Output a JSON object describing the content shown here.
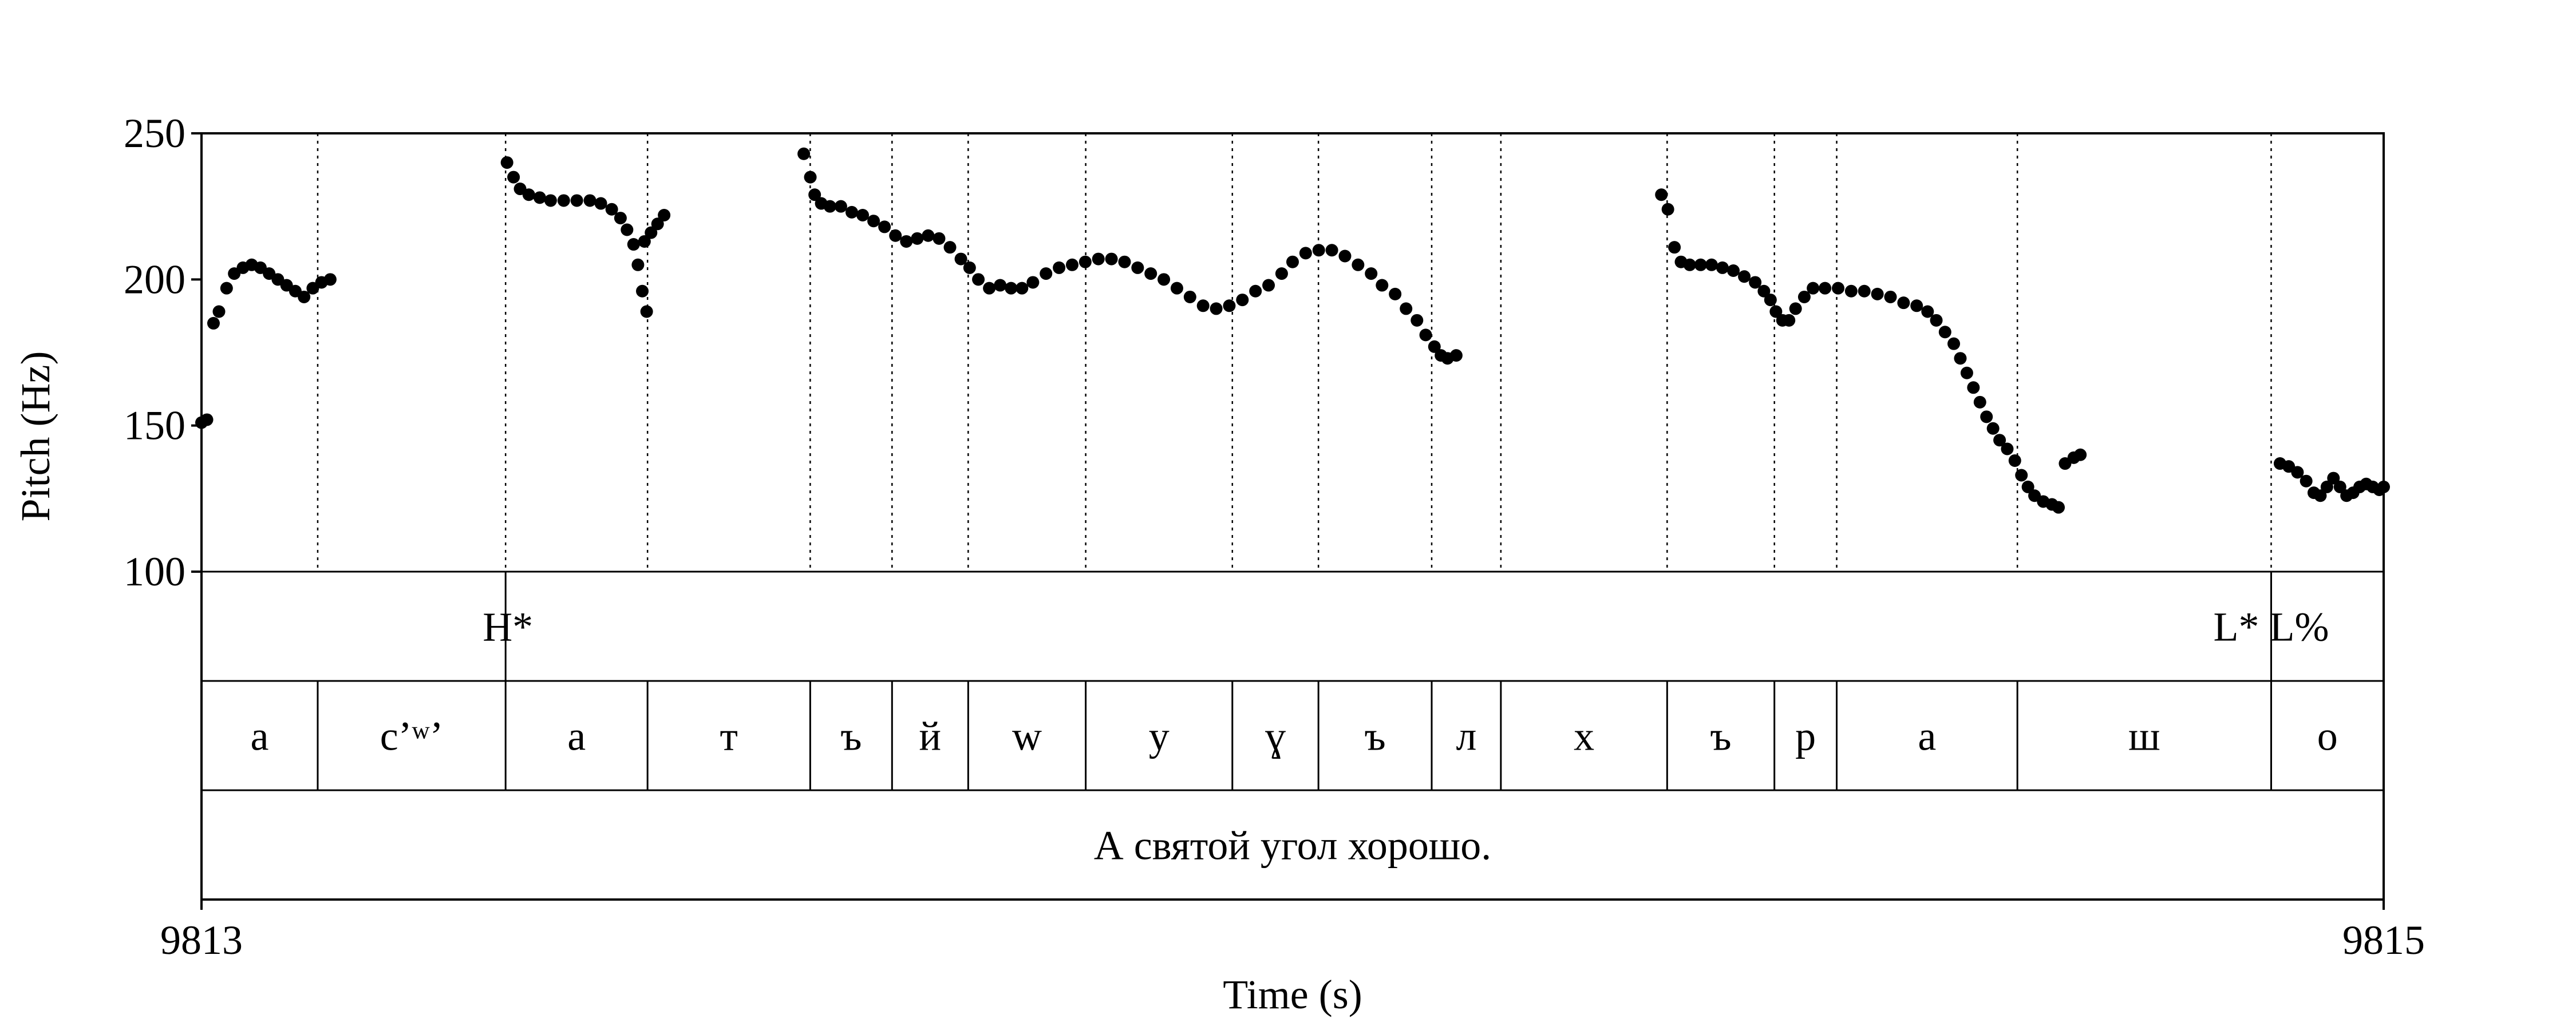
{
  "chart_data": {
    "type": "scatter",
    "title": "",
    "xlabel": "Time (s)",
    "ylabel": "Pitch (Hz)",
    "xlim": [
      9813,
      9815
    ],
    "ylim": [
      100,
      250
    ],
    "x_ticks": [
      "9813",
      "9815"
    ],
    "y_ticks": [
      {
        "value": 250,
        "label": "250"
      },
      {
        "value": 200,
        "label": "200"
      },
      {
        "value": 150,
        "label": "150"
      },
      {
        "value": 100,
        "label": "100"
      }
    ],
    "color": "#000000",
    "boundaries": [
      9813.1065,
      9813.2787,
      9813.4088,
      9813.5579,
      9813.6329,
      9813.7027,
      9813.8104,
      9813.9448,
      9814.0237,
      9814.1275,
      9814.1909,
      9814.3433,
      9814.4416,
      9814.4987,
      9814.6643,
      9814.8969
    ],
    "tones": [
      {
        "label": "H*",
        "time": 9813.2787,
        "align": "right"
      },
      {
        "label": "L* L%",
        "time": 9814.8969,
        "align": "center"
      }
    ],
    "segments": [
      {
        "label": "а",
        "start": 9813.0,
        "end": 9813.1065
      },
      {
        "label": "с’ʷ’",
        "start": 9813.1065,
        "end": 9813.2787
      },
      {
        "label": "а",
        "start": 9813.2787,
        "end": 9813.4088
      },
      {
        "label": "т",
        "start": 9813.4088,
        "end": 9813.5579
      },
      {
        "label": "ъ",
        "start": 9813.5579,
        "end": 9813.6329
      },
      {
        "label": "й",
        "start": 9813.6329,
        "end": 9813.7027
      },
      {
        "label": "w",
        "start": 9813.7027,
        "end": 9813.8104
      },
      {
        "label": "у",
        "start": 9813.8104,
        "end": 9813.9448
      },
      {
        "label": "ɣ",
        "start": 9813.9448,
        "end": 9814.0237
      },
      {
        "label": "ъ",
        "start": 9814.0237,
        "end": 9814.1275
      },
      {
        "label": "л",
        "start": 9814.1275,
        "end": 9814.1909
      },
      {
        "label": "х",
        "start": 9814.1909,
        "end": 9814.3433
      },
      {
        "label": "ъ",
        "start": 9814.3433,
        "end": 9814.4416
      },
      {
        "label": "р",
        "start": 9814.4416,
        "end": 9814.4987
      },
      {
        "label": "а",
        "start": 9814.4987,
        "end": 9814.6643
      },
      {
        "label": "ш",
        "start": 9814.6643,
        "end": 9814.8969
      },
      {
        "label": "о",
        "start": 9814.8969,
        "end": 9815.0
      }
    ],
    "sentence": "А святой угол хорошо.",
    "series": [
      {
        "points": [
          [
            9813.0,
            151
          ],
          [
            9813.005,
            152
          ],
          [
            9813.011,
            185
          ],
          [
            9813.016,
            189
          ],
          [
            9813.023,
            197
          ],
          [
            9813.03,
            202
          ],
          [
            9813.038,
            204
          ],
          [
            9813.046,
            205
          ],
          [
            9813.054,
            204
          ],
          [
            9813.062,
            202
          ],
          [
            9813.07,
            200
          ],
          [
            9813.078,
            198
          ],
          [
            9813.086,
            196
          ],
          [
            9813.094,
            194
          ],
          [
            9813.102,
            197
          ],
          [
            9813.11,
            199
          ],
          [
            9813.118,
            200
          ]
        ]
      },
      {
        "points": [
          [
            9813.28,
            240
          ],
          [
            9813.286,
            235
          ],
          [
            9813.292,
            231
          ],
          [
            9813.3,
            229
          ],
          [
            9813.31,
            228
          ],
          [
            9813.32,
            227
          ],
          [
            9813.332,
            227
          ],
          [
            9813.344,
            227
          ],
          [
            9813.356,
            227
          ],
          [
            9813.366,
            226
          ],
          [
            9813.376,
            224
          ],
          [
            9813.384,
            221
          ],
          [
            9813.39,
            217
          ],
          [
            9813.396,
            212
          ],
          [
            9813.4,
            205
          ],
          [
            9813.404,
            196
          ],
          [
            9813.408,
            189
          ],
          [
            9813.406,
            213
          ],
          [
            9813.412,
            216
          ],
          [
            9813.418,
            219
          ],
          [
            9813.424,
            222
          ]
        ]
      },
      {
        "points": [
          [
            9813.552,
            243
          ],
          [
            9813.558,
            235
          ],
          [
            9813.562,
            229
          ],
          [
            9813.568,
            226
          ],
          [
            9813.576,
            225
          ],
          [
            9813.586,
            225
          ],
          [
            9813.596,
            223
          ],
          [
            9813.606,
            222
          ],
          [
            9813.616,
            220
          ],
          [
            9813.626,
            218
          ],
          [
            9813.636,
            215
          ],
          [
            9813.646,
            213
          ],
          [
            9813.656,
            214
          ],
          [
            9813.666,
            215
          ],
          [
            9813.676,
            214
          ],
          [
            9813.686,
            211
          ],
          [
            9813.696,
            207
          ],
          [
            9813.704,
            204
          ],
          [
            9813.712,
            200
          ],
          [
            9813.722,
            197
          ],
          [
            9813.732,
            198
          ],
          [
            9813.742,
            197
          ],
          [
            9813.752,
            197
          ],
          [
            9813.762,
            199
          ],
          [
            9813.774,
            202
          ],
          [
            9813.786,
            204
          ],
          [
            9813.798,
            205
          ],
          [
            9813.81,
            206
          ],
          [
            9813.822,
            207
          ],
          [
            9813.834,
            207
          ],
          [
            9813.846,
            206
          ],
          [
            9813.858,
            204
          ],
          [
            9813.87,
            202
          ],
          [
            9813.882,
            200
          ],
          [
            9813.894,
            197
          ],
          [
            9813.906,
            194
          ],
          [
            9813.918,
            191
          ],
          [
            9813.93,
            190
          ],
          [
            9813.942,
            191
          ],
          [
            9813.954,
            193
          ],
          [
            9813.966,
            196
          ],
          [
            9813.978,
            198
          ],
          [
            9813.99,
            202
          ],
          [
            9814.0,
            206
          ],
          [
            9814.012,
            209
          ],
          [
            9814.024,
            210
          ],
          [
            9814.036,
            210
          ],
          [
            9814.048,
            208
          ],
          [
            9814.06,
            205
          ],
          [
            9814.072,
            202
          ],
          [
            9814.082,
            198
          ],
          [
            9814.094,
            195
          ],
          [
            9814.104,
            190
          ],
          [
            9814.114,
            186
          ],
          [
            9814.122,
            181
          ],
          [
            9814.13,
            177
          ],
          [
            9814.136,
            174
          ],
          [
            9814.142,
            173
          ],
          [
            9814.15,
            174
          ]
        ]
      },
      {
        "points": [
          [
            9814.338,
            229
          ],
          [
            9814.344,
            224
          ],
          [
            9814.35,
            211
          ],
          [
            9814.356,
            206
          ],
          [
            9814.364,
            205
          ],
          [
            9814.374,
            205
          ],
          [
            9814.384,
            205
          ],
          [
            9814.394,
            204
          ],
          [
            9814.404,
            203
          ],
          [
            9814.414,
            201
          ],
          [
            9814.424,
            199
          ],
          [
            9814.432,
            196
          ],
          [
            9814.438,
            193
          ],
          [
            9814.443,
            189
          ],
          [
            9814.449,
            186
          ],
          [
            9814.455,
            186
          ],
          [
            9814.461,
            190
          ],
          [
            9814.469,
            194
          ],
          [
            9814.477,
            197
          ],
          [
            9814.488,
            197
          ],
          [
            9814.5,
            197
          ],
          [
            9814.512,
            196
          ],
          [
            9814.524,
            196
          ],
          [
            9814.536,
            195
          ],
          [
            9814.548,
            194
          ],
          [
            9814.56,
            192
          ],
          [
            9814.572,
            191
          ],
          [
            9814.582,
            189
          ],
          [
            9814.59,
            186
          ],
          [
            9814.598,
            182
          ],
          [
            9814.606,
            178
          ],
          [
            9814.612,
            173
          ],
          [
            9814.618,
            168
          ],
          [
            9814.624,
            163
          ],
          [
            9814.63,
            158
          ],
          [
            9814.636,
            153
          ],
          [
            9814.642,
            149
          ],
          [
            9814.648,
            145
          ],
          [
            9814.655,
            142
          ],
          [
            9814.662,
            138
          ],
          [
            9814.668,
            133
          ],
          [
            9814.674,
            129
          ],
          [
            9814.68,
            126
          ],
          [
            9814.688,
            124
          ],
          [
            9814.696,
            123
          ],
          [
            9814.702,
            122
          ],
          [
            9814.708,
            137
          ],
          [
            9814.716,
            139
          ],
          [
            9814.722,
            140
          ]
        ]
      },
      {
        "points": [
          [
            9814.905,
            137
          ],
          [
            9814.913,
            136
          ],
          [
            9814.921,
            134
          ],
          [
            9814.929,
            131
          ],
          [
            9814.936,
            127
          ],
          [
            9814.942,
            126
          ],
          [
            9814.948,
            129
          ],
          [
            9814.954,
            132
          ],
          [
            9814.96,
            129
          ],
          [
            9814.966,
            126
          ],
          [
            9814.972,
            127
          ],
          [
            9814.978,
            129
          ],
          [
            9814.984,
            130
          ],
          [
            9814.99,
            129
          ],
          [
            9814.996,
            128
          ],
          [
            9815.0,
            129
          ]
        ]
      }
    ]
  }
}
